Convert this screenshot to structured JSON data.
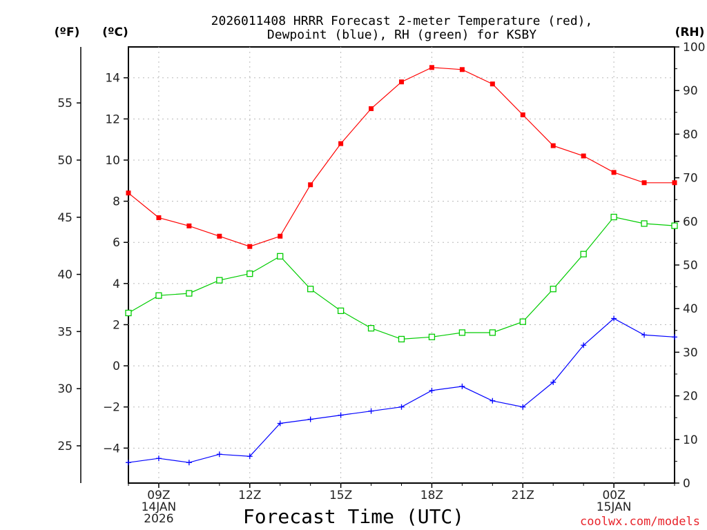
{
  "chart_data": {
    "type": "line",
    "title_lines": [
      "2026011408 HRRR Forecast 2-meter Temperature (red),",
      "Dewpoint (blue), RH (green) for KSBY"
    ],
    "xlabel": "Forecast Time (UTC)",
    "credit": "coolwx.com/models",
    "unit_labels": {
      "fahrenheit": "(ºF)",
      "celsius": "(ºC)",
      "rh": "(RH)"
    },
    "x_hours": [
      8,
      9,
      10,
      11,
      12,
      13,
      14,
      15,
      16,
      17,
      18,
      19,
      20,
      21,
      22,
      23,
      24,
      25,
      26
    ],
    "xlim": [
      8,
      26
    ],
    "x_ticks": [
      {
        "x": 9,
        "lines": [
          "09Z",
          "14JAN",
          "2026"
        ]
      },
      {
        "x": 12,
        "lines": [
          "12Z"
        ]
      },
      {
        "x": 15,
        "lines": [
          "15Z"
        ]
      },
      {
        "x": 18,
        "lines": [
          "18Z"
        ]
      },
      {
        "x": 21,
        "lines": [
          "21Z"
        ]
      },
      {
        "x": 24,
        "lines": [
          "00Z",
          "15JAN"
        ]
      }
    ],
    "celsius_axis": {
      "range": [
        -5.7,
        15.5
      ],
      "ticks": [
        -4,
        -2,
        0,
        2,
        4,
        6,
        8,
        10,
        12,
        14
      ],
      "tick_labels": [
        "−4",
        "−2",
        "0",
        "2",
        "4",
        "6",
        "8",
        "10",
        "12",
        "14"
      ]
    },
    "fahrenheit_axis": {
      "ticks": [
        25,
        30,
        35,
        40,
        45,
        50,
        55
      ],
      "tick_labels": [
        "25",
        "30",
        "35",
        "40",
        "45",
        "50",
        "55"
      ]
    },
    "rh_axis": {
      "range": [
        0,
        100
      ],
      "ticks": [
        0,
        10,
        20,
        30,
        40,
        50,
        60,
        70,
        80,
        90,
        100
      ],
      "tick_labels": [
        "0",
        "10",
        "20",
        "30",
        "40",
        "50",
        "60",
        "70",
        "80",
        "90",
        "100"
      ]
    },
    "series": [
      {
        "name": "Temperature",
        "axis": "celsius",
        "color": "#ff0000",
        "marker": "filled-square",
        "values": [
          8.4,
          7.2,
          6.8,
          6.3,
          5.8,
          6.3,
          8.8,
          10.8,
          12.5,
          13.8,
          14.5,
          14.4,
          13.7,
          12.2,
          10.7,
          10.2,
          9.4,
          8.9,
          8.9
        ]
      },
      {
        "name": "Dewpoint",
        "axis": "celsius",
        "color": "#0000ff",
        "marker": "plus",
        "values": [
          -4.7,
          -4.5,
          -4.7,
          -4.3,
          -4.4,
          -2.8,
          -2.6,
          -2.4,
          -2.2,
          -2.0,
          -1.2,
          -1.0,
          -1.7,
          -2.0,
          -0.8,
          1.0,
          2.3,
          1.5,
          1.4
        ]
      },
      {
        "name": "RH",
        "axis": "rh",
        "color": "#00cc00",
        "marker": "open-square",
        "values": [
          39,
          43,
          43.5,
          46.5,
          48,
          52,
          44.5,
          39.5,
          35.5,
          33,
          33.5,
          34.5,
          34.5,
          37,
          44.5,
          52.5,
          61,
          59.5,
          59
        ]
      }
    ]
  }
}
